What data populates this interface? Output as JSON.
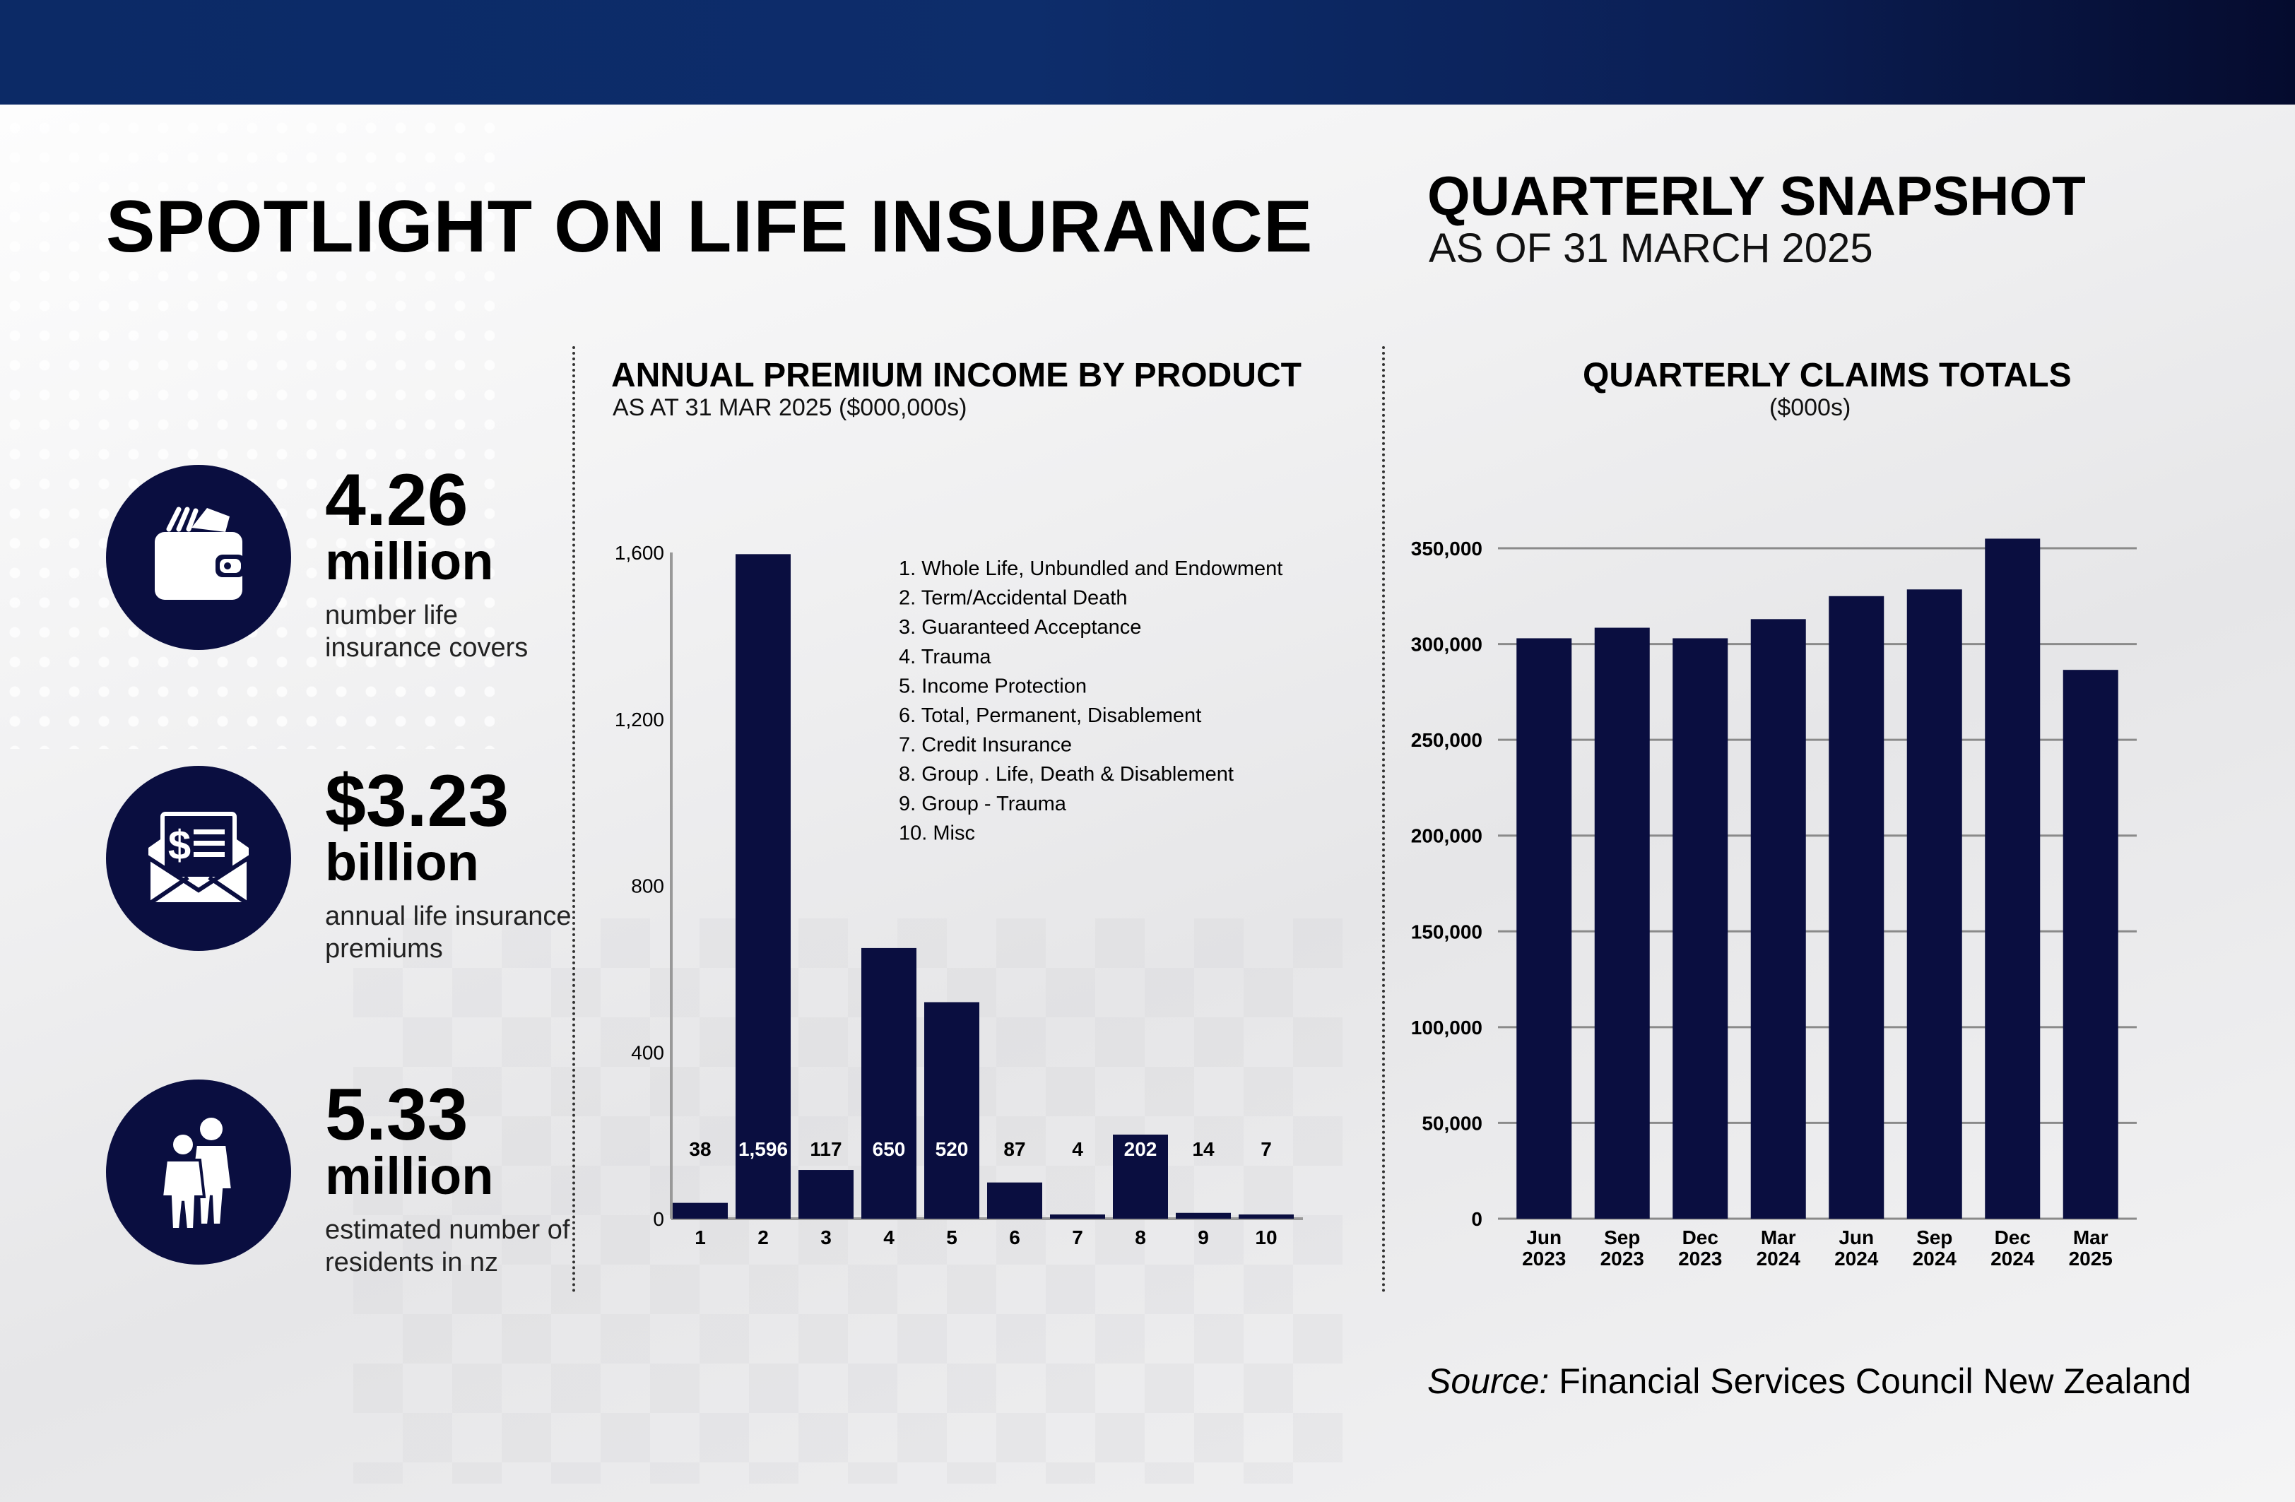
{
  "header": {
    "title": "SPOTLIGHT ON LIFE INSURANCE",
    "snapshot_title": "QUARTERLY SNAPSHOT",
    "snapshot_subtitle": "AS OF 31 MARCH 2025"
  },
  "stats": [
    {
      "value": "4.26",
      "unit": "million",
      "description": "number life insurance covers",
      "icon": "wallet-icon"
    },
    {
      "value": "$3.23",
      "unit": "billion",
      "description": "annual life insurance premiums",
      "icon": "envelope-invoice-icon"
    },
    {
      "value": "5.33",
      "unit": "million",
      "description": "estimated number of residents in nz",
      "icon": "people-icon"
    }
  ],
  "premium_chart": {
    "title": "ANNUAL PREMIUM INCOME BY PRODUCT",
    "subtitle": "AS AT 31 MAR 2025 ($000,000s)"
  },
  "claims_chart": {
    "title": "QUARTERLY CLAIMS TOTALS",
    "subtitle": "($000s)"
  },
  "source": {
    "label": "Source:",
    "text": "Financial Services Council New Zealand"
  },
  "colors": {
    "bar": "#0a0e40",
    "header_band": "#0c2a66"
  },
  "chart_data": [
    {
      "type": "bar",
      "title": "ANNUAL PREMIUM INCOME BY PRODUCT",
      "subtitle": "AS AT 31 MAR 2025 ($000,000s)",
      "categories": [
        "1",
        "2",
        "3",
        "4",
        "5",
        "6",
        "7",
        "8",
        "9",
        "10"
      ],
      "values": [
        38,
        1596,
        117,
        650,
        520,
        87,
        4,
        202,
        14,
        7
      ],
      "value_labels": [
        "38",
        "1,596",
        "117",
        "650",
        "520",
        "87",
        "4",
        "202",
        "14",
        "7"
      ],
      "legend": [
        "1. Whole Life, Unbundled and Endowment",
        "2. Term/Accidental Death",
        "3. Guaranteed Acceptance",
        "4. Trauma",
        "5. Income Protection",
        "6. Total, Permanent, Disablement",
        "7. Credit Insurance",
        "8. Group . Life, Death & Disablement",
        "9. Group - Trauma",
        "10. Misc"
      ],
      "y_ticks": [
        0,
        400,
        800,
        1200,
        1600
      ],
      "y_tick_labels": [
        "0",
        "400",
        "800",
        "1,200",
        "1,600"
      ],
      "ylim": [
        0,
        1600
      ],
      "grid": false,
      "legend_position": "top-right"
    },
    {
      "type": "bar",
      "title": "QUARTERLY CLAIMS TOTALS",
      "subtitle": "($000s)",
      "categories": [
        "Jun 2023",
        "Sep 2023",
        "Dec 2023",
        "Mar 2024",
        "Jun 2024",
        "Sep 2024",
        "Dec 2024",
        "Mar 2025"
      ],
      "values": [
        303000,
        308500,
        303000,
        313000,
        325000,
        328500,
        355000,
        286500
      ],
      "y_ticks": [
        0,
        50000,
        100000,
        150000,
        200000,
        250000,
        300000,
        350000
      ],
      "y_tick_labels": [
        "0",
        "50,000",
        "100,000",
        "150,000",
        "200,000",
        "250,000",
        "300,000",
        "350,000"
      ],
      "ylim": [
        0,
        350000
      ],
      "grid": true
    }
  ]
}
